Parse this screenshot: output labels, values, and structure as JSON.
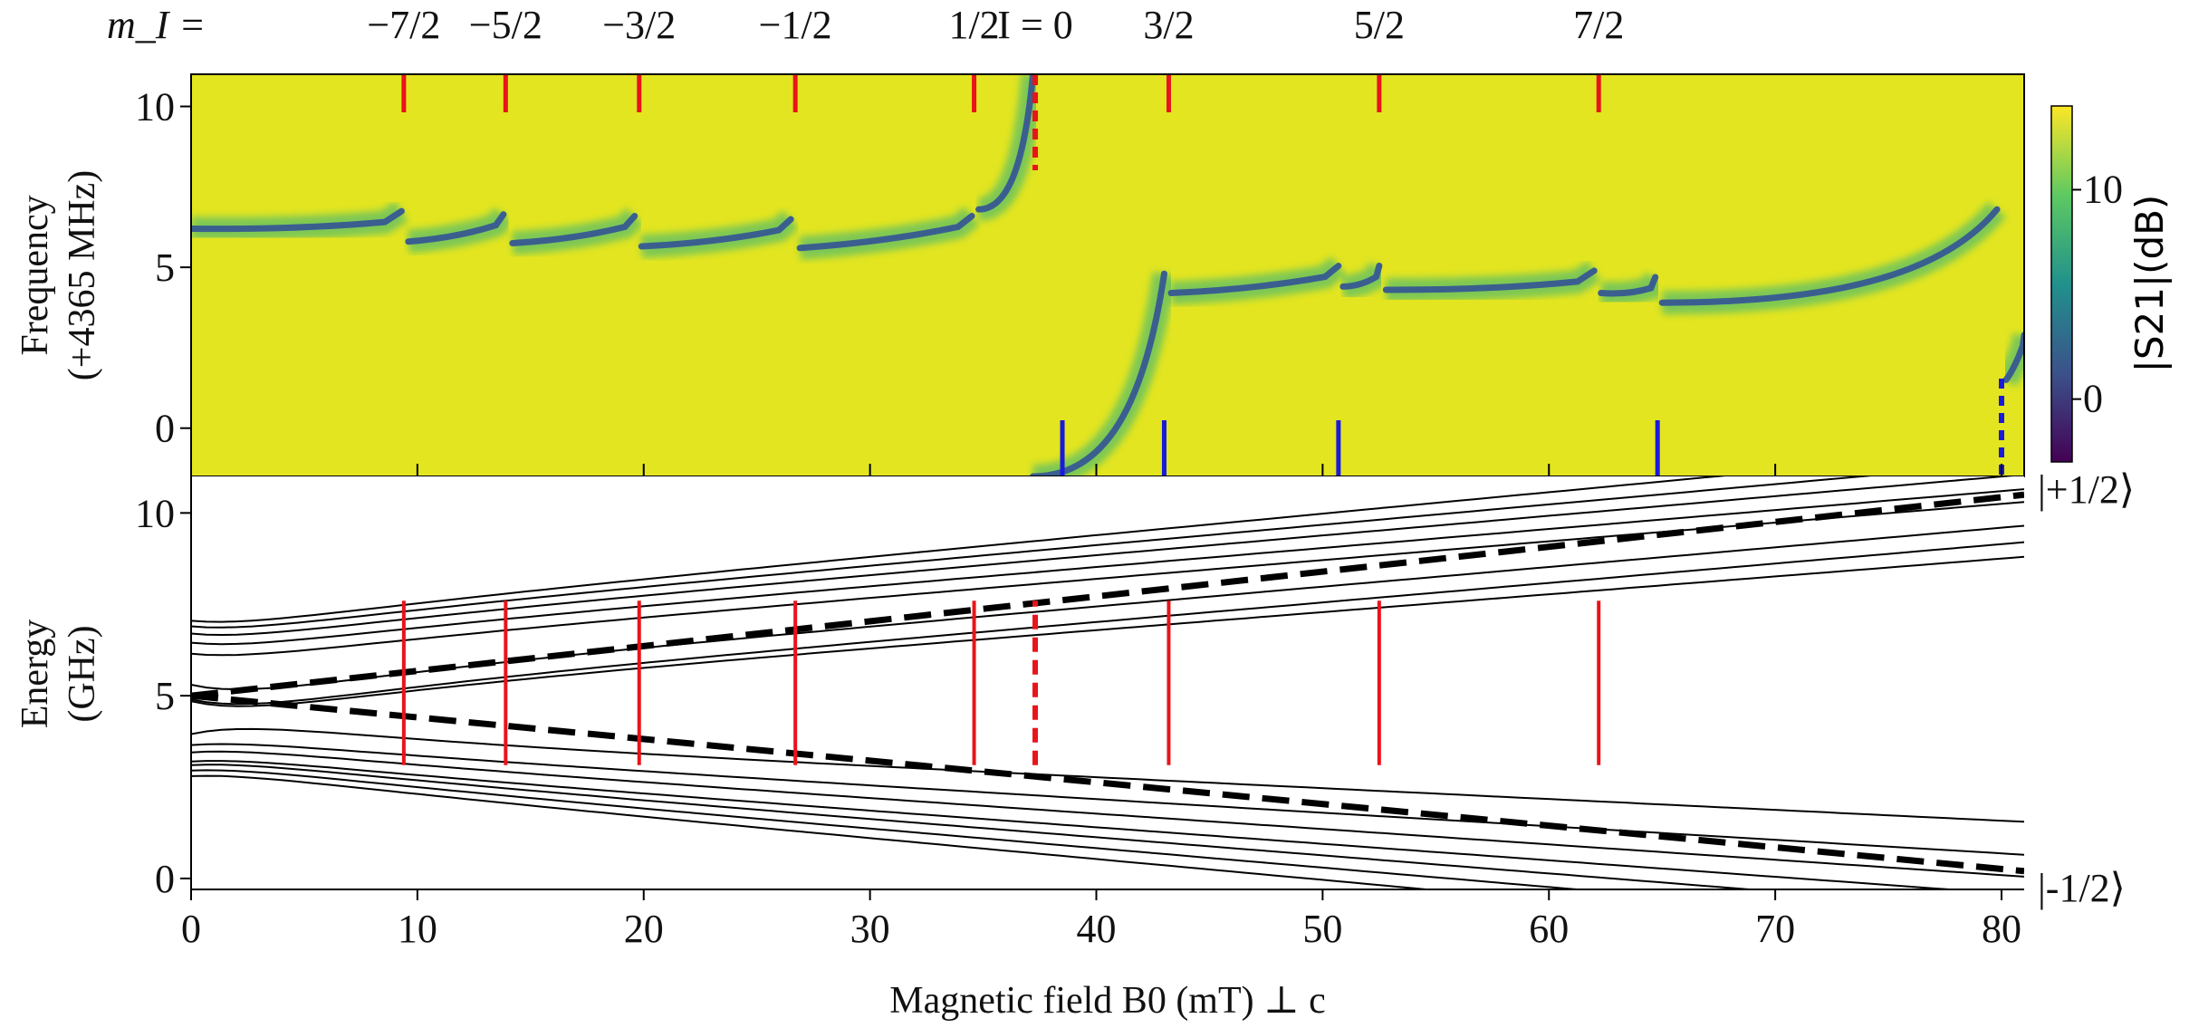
{
  "chart_data": [
    {
      "type": "heatmap",
      "panel": "top",
      "xlabel": "",
      "ylabel": "Frequency\n(+4365 MHz)",
      "xlim": [
        0,
        81
      ],
      "ylim": [
        -1.5,
        11
      ],
      "yticks": [
        "0",
        "5",
        "10"
      ],
      "ytick_values": [
        0,
        5,
        10
      ],
      "xticks_minor": [
        10,
        20,
        30,
        40,
        50,
        60,
        70,
        80
      ],
      "colorbar": {
        "label": "|S21|(dB)",
        "ticks": [
          "0",
          "10"
        ],
        "tick_values": [
          0,
          10
        ],
        "range": [
          -3,
          14
        ],
        "colors": [
          "#440154",
          "#3b528b",
          "#21918c",
          "#5ec962",
          "#fde725"
        ]
      },
      "background_color": "#e3e520",
      "resonance_segments": [
        {
          "x": [
            0,
            9.3
          ],
          "y_start": 6.2,
          "y_end": 6.35
        },
        {
          "x": [
            9.6,
            13.8
          ],
          "y_start": 5.8,
          "y_end": 6.25
        },
        {
          "x": [
            14.2,
            19.6
          ],
          "y_start": 5.75,
          "y_end": 6.2
        },
        {
          "x": [
            19.9,
            26.5
          ],
          "y_start": 5.65,
          "y_end": 6.1
        },
        {
          "x": [
            26.9,
            34.5
          ],
          "y_start": 5.6,
          "y_end": 6.2
        },
        {
          "x": [
            34.8,
            37.2
          ],
          "y_start": 6.8,
          "y_end": 11
        },
        {
          "x": [
            37.2,
            43.0
          ],
          "y_start": -1.5,
          "y_end": 4.8
        },
        {
          "x": [
            43.3,
            50.7
          ],
          "y_start": 4.2,
          "y_end": 4.65
        },
        {
          "x": [
            50.9,
            52.5
          ],
          "y_start": 4.4,
          "y_end": 4.65
        },
        {
          "x": [
            52.8,
            62.0
          ],
          "y_start": 4.3,
          "y_end": 4.5
        },
        {
          "x": [
            62.3,
            64.7
          ],
          "y_start": 4.2,
          "y_end": 4.3
        },
        {
          "x": [
            65.0,
            79.8
          ],
          "y_start": 3.9,
          "y_end": 6.8
        },
        {
          "x": [
            80.2,
            81
          ],
          "y_start": 1.5,
          "y_end": 2.5
        }
      ],
      "red_markers_top": [
        9.4,
        13.9,
        19.8,
        26.7,
        34.6,
        43.2,
        52.5,
        62.2
      ],
      "red_marker_dashed_top": 37.3,
      "blue_markers_bottom": [
        38.5,
        43.0,
        50.7,
        64.8
      ],
      "blue_marker_dashed_bottom": 80.0,
      "mi_prefix": "m_I =",
      "mi_labels": [
        {
          "x": 9.4,
          "text": "−7/2"
        },
        {
          "x": 13.9,
          "text": "−5/2"
        },
        {
          "x": 19.8,
          "text": "−3/2"
        },
        {
          "x": 26.7,
          "text": "−1/2"
        },
        {
          "x": 34.6,
          "text": "1/2"
        },
        {
          "x": 37.3,
          "text": "I = 0"
        },
        {
          "x": 43.2,
          "text": "3/2"
        },
        {
          "x": 52.5,
          "text": "5/2"
        },
        {
          "x": 62.2,
          "text": "7/2"
        }
      ]
    },
    {
      "type": "line",
      "panel": "bottom",
      "xlabel": "Magnetic field B0 (mT) ⊥ c",
      "ylabel": "Energy\n(GHz)",
      "xlim": [
        0,
        81
      ],
      "ylim": [
        -0.3,
        11
      ],
      "xticks": [
        "0",
        "10",
        "20",
        "30",
        "40",
        "50",
        "60",
        "70",
        "80"
      ],
      "xtick_values": [
        0,
        10,
        20,
        30,
        40,
        50,
        60,
        70,
        80
      ],
      "yticks": [
        "0",
        "5",
        "10"
      ],
      "ytick_values": [
        0,
        5,
        10
      ],
      "upper_levels_y0": [
        7.05,
        6.9,
        6.7,
        6.45,
        6.15,
        5.3,
        4.9,
        4.85
      ],
      "upper_levels_y81": [
        11.8,
        11.4,
        11.05,
        10.65,
        10.3,
        9.65,
        9.2,
        8.8
      ],
      "lower_levels_y0": [
        3.95,
        3.65,
        3.45,
        3.2,
        3.1,
        2.95,
        2.8
      ],
      "lower_levels_y81": [
        1.55,
        0.65,
        0.05,
        -0.45,
        -0.9,
        -1.35,
        -1.8
      ],
      "dashed_upper": {
        "x": [
          0,
          81
        ],
        "y": [
          5.0,
          10.5
        ]
      },
      "dashed_lower": {
        "x": [
          0,
          81
        ],
        "y": [
          5.0,
          0.2
        ]
      },
      "red_transitions": [
        {
          "x": 9.4,
          "y": [
            3.1,
            7.6
          ]
        },
        {
          "x": 13.9,
          "y": [
            3.1,
            7.6
          ]
        },
        {
          "x": 19.8,
          "y": [
            3.1,
            7.6
          ]
        },
        {
          "x": 26.7,
          "y": [
            3.1,
            7.6
          ]
        },
        {
          "x": 34.6,
          "y": [
            3.1,
            7.6
          ]
        },
        {
          "x": 43.2,
          "y": [
            3.1,
            7.6
          ]
        },
        {
          "x": 52.5,
          "y": [
            3.1,
            7.6
          ]
        },
        {
          "x": 62.2,
          "y": [
            3.1,
            7.6
          ]
        }
      ],
      "red_transition_dashed": {
        "x": 37.3,
        "y": [
          3.1,
          7.6
        ]
      },
      "state_labels": {
        "upper": "|+1/2⟩",
        "lower": "|-1/2⟩"
      }
    }
  ]
}
